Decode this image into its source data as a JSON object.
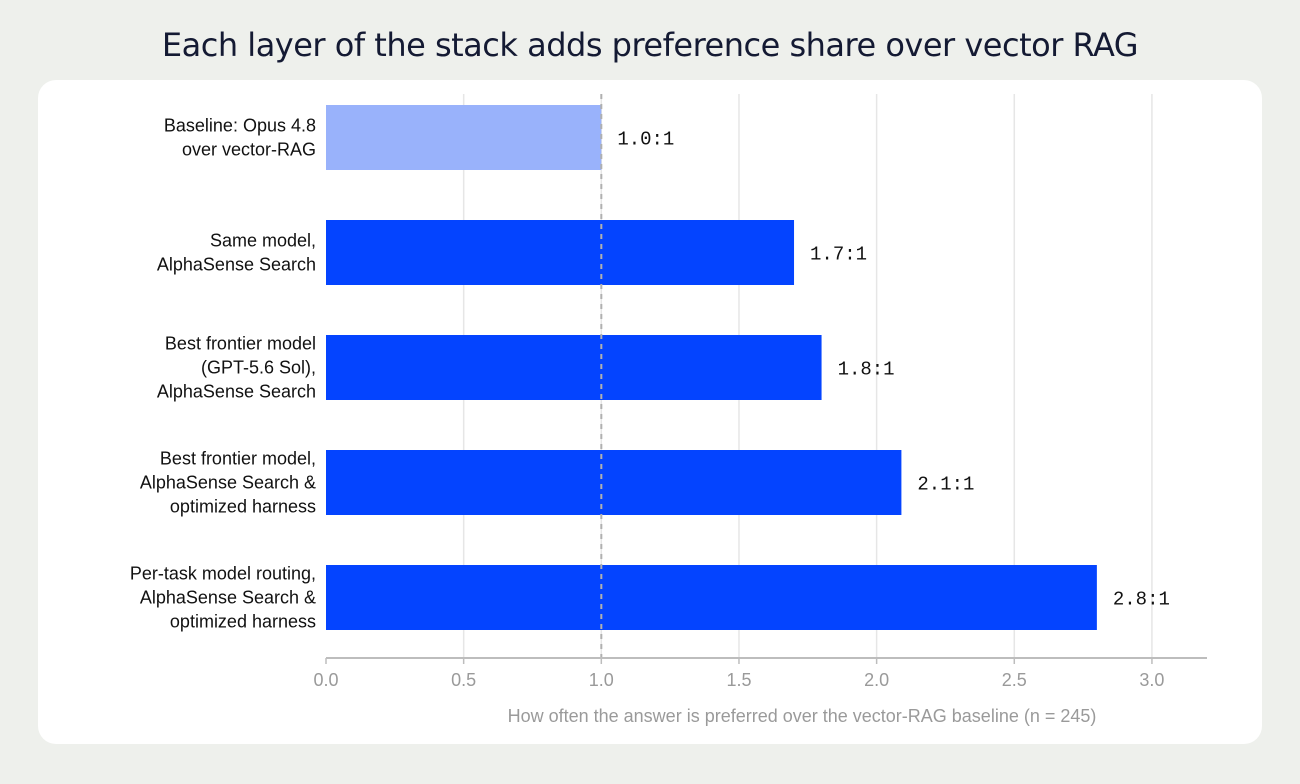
{
  "title": "Each layer of the stack adds preference share over vector RAG",
  "colors": {
    "baseline_bar": "#99b2fb",
    "bar": "#0444ff",
    "grid": "#e6e6e6",
    "axis": "#bdbdbd",
    "reference_line": "#b0b0b0"
  },
  "chart_data": {
    "type": "bar",
    "orientation": "horizontal",
    "categories": [
      [
        "Baseline: Opus 4.8",
        "over vector-RAG"
      ],
      [
        "Same model,",
        "AlphaSense Search"
      ],
      [
        "Best frontier model",
        "(GPT-5.6 Sol),",
        "AlphaSense Search"
      ],
      [
        "Best frontier model,",
        "AlphaSense Search &",
        "optimized harness"
      ],
      [
        "Per-task model routing,",
        "AlphaSense Search &",
        "optimized harness"
      ]
    ],
    "values": [
      1.0,
      1.7,
      1.8,
      2.09,
      2.8
    ],
    "value_labels": [
      "1.0:1",
      "1.7:1",
      "1.8:1",
      "2.1:1",
      "2.8:1"
    ],
    "xlabel": "How often the answer is preferred over the vector-RAG baseline (n = 245)",
    "xlim": [
      0,
      3.2
    ],
    "xticks": [
      0.0,
      0.5,
      1.0,
      1.5,
      2.0,
      2.5,
      3.0
    ],
    "xtick_labels": [
      "0.0",
      "0.5",
      "1.0",
      "1.5",
      "2.0",
      "2.5",
      "3.0"
    ],
    "reference_line": 1.0,
    "grid": true
  }
}
